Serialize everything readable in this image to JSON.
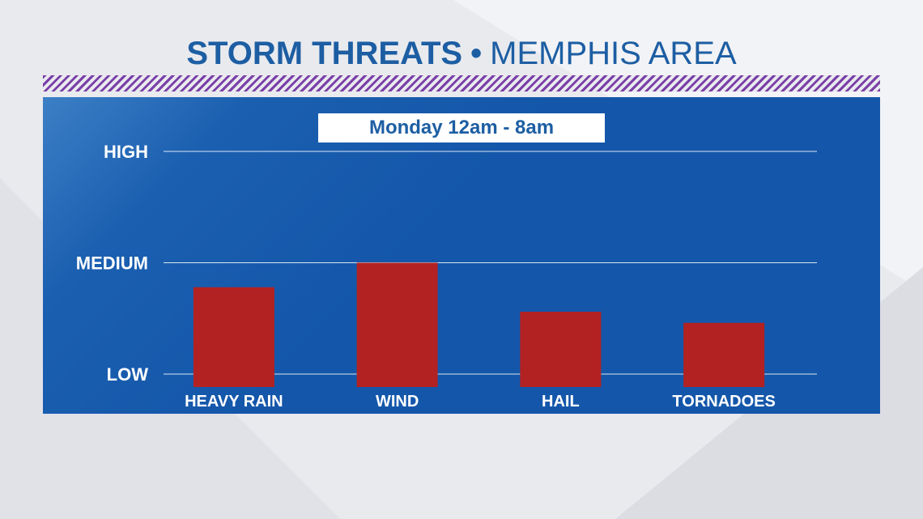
{
  "header": {
    "title_bold": "STORM THREATS",
    "separator": "•",
    "title_regular": "MEMPHIS AREA"
  },
  "timeframe": "Monday 12am - 8am",
  "colors": {
    "title": "#1d5ea3",
    "panel": "#1457aa",
    "bar": "#b22222",
    "stripe": "#7a3fa8"
  },
  "chart_data": {
    "type": "bar",
    "categories": [
      "HEAVY RAIN",
      "WIND",
      "HAIL",
      "TORNADOES"
    ],
    "values": [
      0.39,
      0.5,
      0.28,
      0.23
    ],
    "levels": [
      {
        "label": "LOW",
        "value": 0
      },
      {
        "label": "MEDIUM",
        "value": 0.5
      },
      {
        "label": "HIGH",
        "value": 1
      }
    ],
    "ylim": [
      0,
      1
    ],
    "grid": true,
    "legend": "none"
  }
}
